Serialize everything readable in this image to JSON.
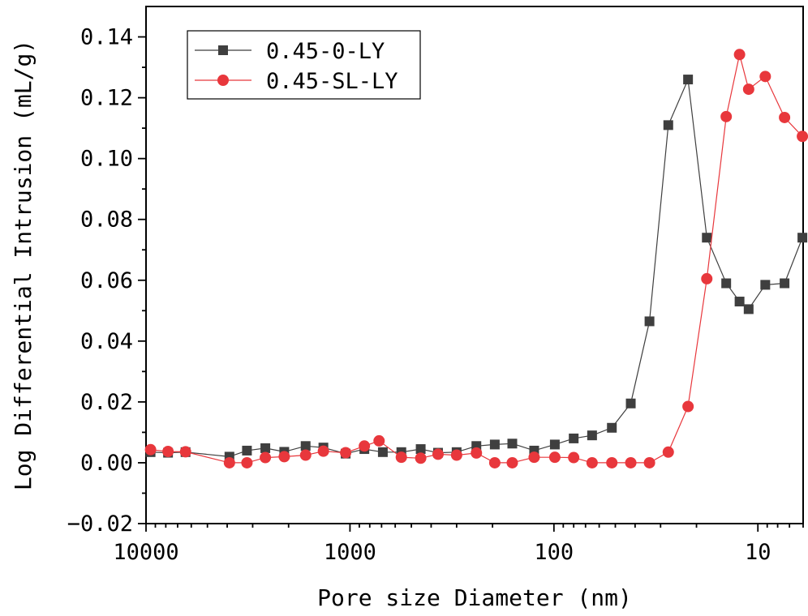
{
  "chart_data": {
    "type": "line",
    "xscale": "log",
    "x_reversed": true,
    "xlabel": "Pore size Diameter (nm)",
    "ylabel": "Log Differential Intrusion (mL/g)",
    "xlim": [
      10000,
      6
    ],
    "ylim": [
      -0.02,
      0.15
    ],
    "x_ticks": [
      10000,
      1000,
      100,
      10
    ],
    "x_tick_labels": [
      "10000",
      "1000",
      "100",
      "10"
    ],
    "y_ticks": [
      -0.02,
      0.0,
      0.02,
      0.04,
      0.06,
      0.08,
      0.1,
      0.12,
      0.14
    ],
    "y_tick_labels": [
      "−0.02",
      "0.00",
      "0.02",
      "0.04",
      "0.06",
      "0.08",
      "0.10",
      "0.12",
      "0.14"
    ],
    "legend_position": "top-left",
    "series": [
      {
        "name": "0.45-0-LY",
        "color": "#3f3f3f",
        "marker": "square",
        "points": [
          [
            9500,
            0.0035
          ],
          [
            7800,
            0.0033
          ],
          [
            6400,
            0.0035
          ],
          [
            3900,
            0.002
          ],
          [
            3200,
            0.004
          ],
          [
            2600,
            0.0048
          ],
          [
            2100,
            0.0036
          ],
          [
            1650,
            0.0055
          ],
          [
            1350,
            0.005
          ],
          [
            1050,
            0.003
          ],
          [
            850,
            0.0045
          ],
          [
            690,
            0.0035
          ],
          [
            560,
            0.0035
          ],
          [
            450,
            0.0045
          ],
          [
            370,
            0.0033
          ],
          [
            300,
            0.0035
          ],
          [
            240,
            0.0055
          ],
          [
            195,
            0.006
          ],
          [
            160,
            0.0063
          ],
          [
            125,
            0.004
          ],
          [
            99,
            0.006
          ],
          [
            80,
            0.008
          ],
          [
            65,
            0.009
          ],
          [
            52,
            0.0115
          ],
          [
            42,
            0.0195
          ],
          [
            34,
            0.0465
          ],
          [
            27.5,
            0.111
          ],
          [
            22,
            0.126
          ],
          [
            17.8,
            0.074
          ],
          [
            14.3,
            0.059
          ],
          [
            12.3,
            0.053
          ],
          [
            11.1,
            0.0505
          ],
          [
            9.2,
            0.0585
          ],
          [
            7.4,
            0.059
          ],
          [
            6.05,
            0.074
          ]
        ]
      },
      {
        "name": "0.45-SL-LY",
        "color": "#e8373c",
        "marker": "circle",
        "points": [
          [
            9500,
            0.0043
          ],
          [
            7800,
            0.0037
          ],
          [
            6400,
            0.0036
          ],
          [
            3900,
            0.0
          ],
          [
            3200,
            0.0
          ],
          [
            2600,
            0.0017
          ],
          [
            2100,
            0.002
          ],
          [
            1650,
            0.0025
          ],
          [
            1350,
            0.0038
          ],
          [
            1050,
            0.0033
          ],
          [
            850,
            0.0055
          ],
          [
            720,
            0.0072
          ],
          [
            560,
            0.0018
          ],
          [
            450,
            0.0015
          ],
          [
            370,
            0.0028
          ],
          [
            300,
            0.0025
          ],
          [
            240,
            0.0032
          ],
          [
            195,
            0.0
          ],
          [
            160,
            0.0
          ],
          [
            125,
            0.0018
          ],
          [
            99,
            0.0018
          ],
          [
            80,
            0.0017
          ],
          [
            65,
            0.0
          ],
          [
            52,
            0.0
          ],
          [
            42,
            0.0
          ],
          [
            34,
            0.0
          ],
          [
            27.5,
            0.0035
          ],
          [
            22,
            0.0185
          ],
          [
            17.8,
            0.0605
          ],
          [
            14.3,
            0.1138
          ],
          [
            12.3,
            0.1342
          ],
          [
            11.1,
            0.1228
          ],
          [
            9.2,
            0.127
          ],
          [
            7.4,
            0.1135
          ],
          [
            6.05,
            0.1073
          ]
        ]
      }
    ]
  }
}
